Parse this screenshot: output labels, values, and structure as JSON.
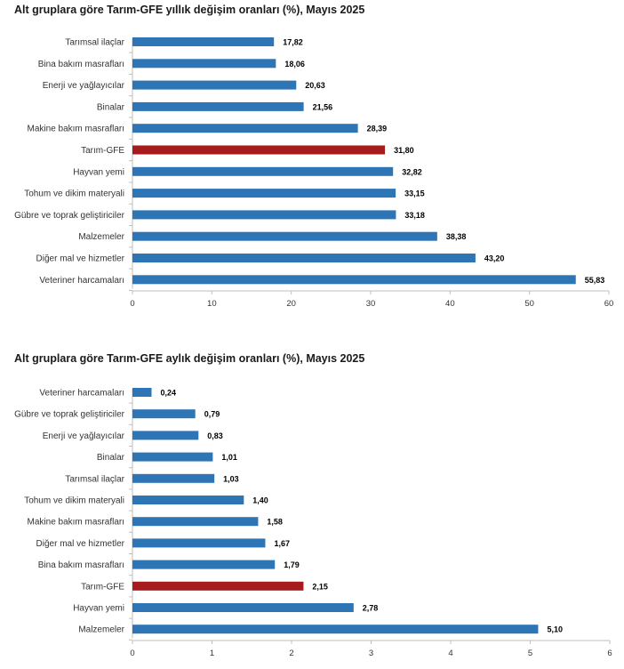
{
  "chart_data": [
    {
      "type": "bar",
      "orientation": "horizontal",
      "title": "Alt gruplara göre Tarım-GFE yıllık değişim oranları (%), Mayıs 2025",
      "categories": [
        "Tarımsal ilaçlar",
        "Bina bakım masrafları",
        "Enerji  ve yağlayıcılar",
        "Binalar",
        "Makine bakım masrafları",
        "Tarım-GFE",
        "Hayvan yemi",
        "Tohum ve dikim materyali",
        "Gübre ve toprak geliştiriciler",
        "Malzemeler",
        "Diğer mal ve hizmetler",
        "Veteriner harcamaları"
      ],
      "values": [
        17.82,
        18.06,
        20.63,
        21.56,
        28.39,
        31.8,
        32.82,
        33.15,
        33.18,
        38.38,
        43.2,
        55.83
      ],
      "value_labels": [
        "17,82",
        "18,06",
        "20,63",
        "21,56",
        "28,39",
        "31,80",
        "32,82",
        "33,15",
        "33,18",
        "38,38",
        "43,20",
        "55,83"
      ],
      "highlight_category": "Tarım-GFE",
      "xlim": [
        0,
        60
      ],
      "xticks": [
        0,
        10,
        20,
        30,
        40,
        50,
        60
      ],
      "xtick_labels": [
        "0",
        "10",
        "20",
        "30",
        "40",
        "50",
        "60"
      ],
      "grid": false,
      "colors": {
        "bar": "#2e75b6",
        "highlight": "#a61c1c",
        "axis": "#bfbfbf"
      }
    },
    {
      "type": "bar",
      "orientation": "horizontal",
      "title": "Alt gruplara göre Tarım-GFE aylık değişim oranları (%), Mayıs 2025",
      "categories": [
        "Veteriner harcamaları",
        "Gübre ve toprak geliştiriciler",
        "Enerji  ve yağlayıcılar",
        "Binalar",
        "Tarımsal ilaçlar",
        "Tohum ve dikim materyali",
        "Makine bakım masrafları",
        "Diğer mal ve hizmetler",
        "Bina bakım masrafları",
        "Tarım-GFE",
        "Hayvan yemi",
        "Malzemeler"
      ],
      "values": [
        0.24,
        0.79,
        0.83,
        1.01,
        1.03,
        1.4,
        1.58,
        1.67,
        1.79,
        2.15,
        2.78,
        5.1
      ],
      "value_labels": [
        "0,24",
        "0,79",
        "0,83",
        "1,01",
        "1,03",
        "1,40",
        "1,58",
        "1,67",
        "1,79",
        "2,15",
        "2,78",
        "5,10"
      ],
      "highlight_category": "Tarım-GFE",
      "xlim": [
        0,
        6
      ],
      "xticks": [
        0,
        1,
        2,
        3,
        4,
        5,
        6
      ],
      "xtick_labels": [
        "0",
        "1",
        "2",
        "3",
        "4",
        "5",
        "6"
      ],
      "grid": false,
      "colors": {
        "bar": "#2e75b6",
        "highlight": "#a61c1c",
        "axis": "#bfbfbf"
      }
    }
  ]
}
